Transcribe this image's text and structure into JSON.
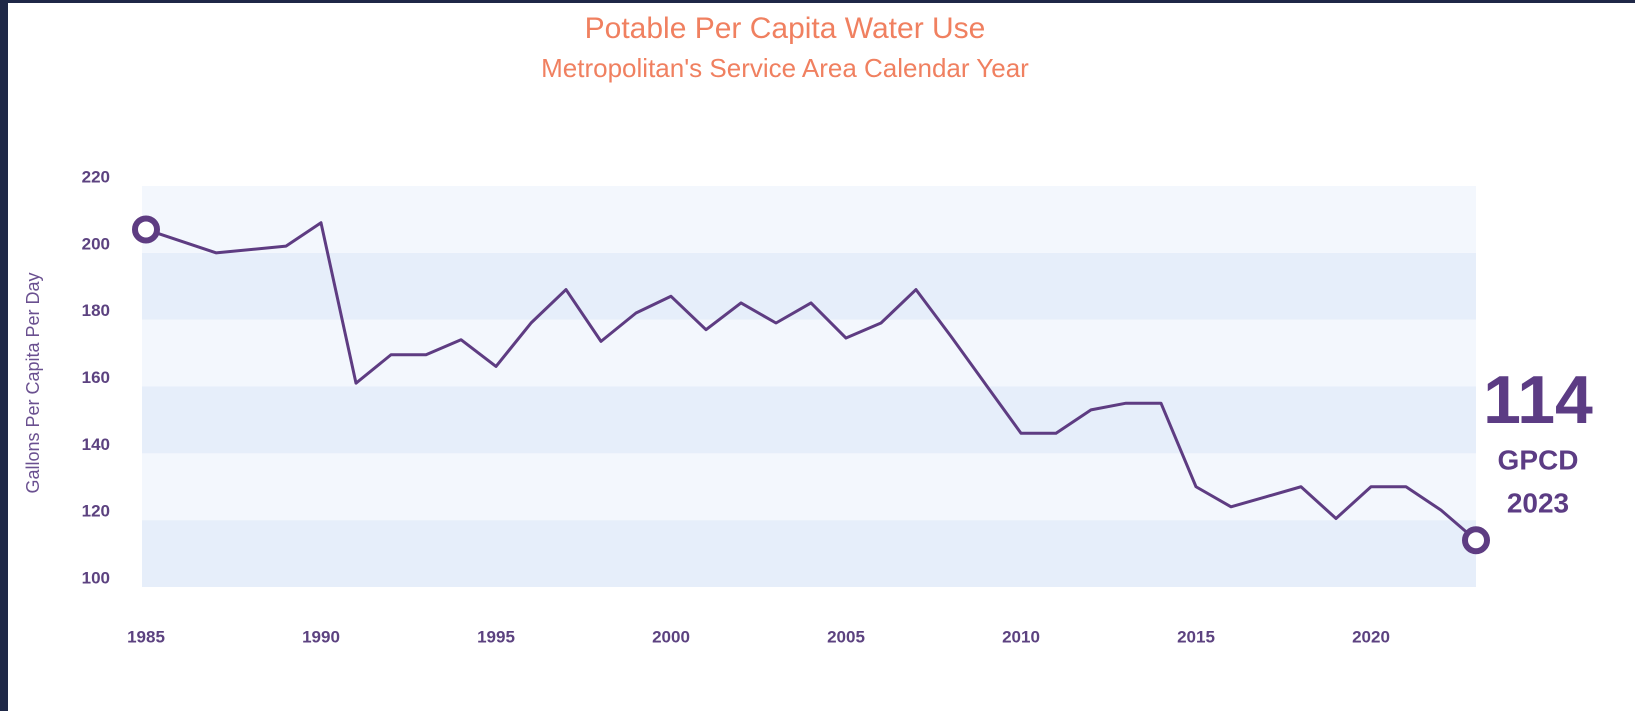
{
  "chart_data": {
    "type": "line",
    "title": "Potable Per Capita Water Use",
    "subtitle": "Metropolitan's Service Area Calendar Year",
    "y_label": "Gallons Per Capita Per Day",
    "x": [
      1985,
      1987,
      1989,
      1990,
      1991,
      1992,
      1993,
      1994,
      1995,
      1996,
      1997,
      1998,
      1999,
      2000,
      2001,
      2002,
      2003,
      2004,
      2005,
      2006,
      2007,
      2008,
      2009,
      2010,
      2011,
      2012,
      2013,
      2014,
      2015,
      2016,
      2017,
      2018,
      2019,
      2020,
      2021,
      2022,
      2023
    ],
    "series": [
      {
        "color": "#5e3c82",
        "values": [
          207,
          200,
          202,
          209,
          161,
          169.5,
          169.5,
          174,
          166,
          179,
          189,
          173.5,
          182,
          187,
          177,
          185,
          179,
          185,
          174.5,
          179,
          189,
          175,
          160.5,
          146,
          146,
          153,
          155,
          155,
          130,
          124,
          127,
          130,
          120.5,
          130,
          130,
          123,
          114
        ]
      }
    ],
    "xlim": [
      1985,
      2023
    ],
    "ylim": [
      100,
      220
    ],
    "xticks": [
      1985,
      1990,
      1995,
      2000,
      2005,
      2010,
      2015,
      2020
    ],
    "yticks": [
      100,
      120,
      140,
      160,
      180,
      200,
      220
    ],
    "band_colors": [
      "#e6eefa",
      "#f3f7fd"
    ],
    "annotation": {
      "value": "114",
      "unit": "GPCD",
      "year": "2023"
    }
  }
}
